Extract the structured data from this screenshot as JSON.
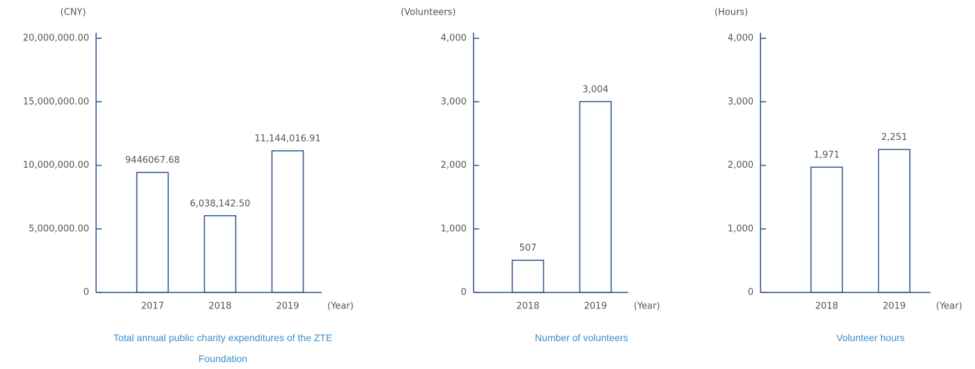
{
  "chart_data": [
    {
      "type": "bar",
      "title": "Total annual public charity expenditures of the ZTE Foundation",
      "y_label": "(CNY)",
      "x_label": "(Year)",
      "categories": [
        "2017",
        "2018",
        "2019"
      ],
      "values": [
        9446067.68,
        6038142.5,
        11144016.91
      ],
      "value_labels": [
        "9446067.68",
        "6,038,142.50",
        "11,144,016.91"
      ],
      "color": "#2d4f8f",
      "ylim": [
        0,
        20000000
      ],
      "yticks": [
        0,
        {
          "value": 5000000,
          "label": "5,000,000.00"
        },
        {
          "value": 10000000,
          "label": "10,000,000.00"
        },
        {
          "value": 15000000,
          "label": "15,000,000.00"
        },
        {
          "value": 20000000,
          "label": "20,000,000.00"
        }
      ]
    },
    {
      "type": "bar",
      "title": "Number of volunteers",
      "y_label": "(Volunteers)",
      "x_label": "(Year)",
      "categories": [
        "2018",
        "2019"
      ],
      "values": [
        507,
        3004
      ],
      "value_labels": [
        "507",
        "3,004"
      ],
      "color": "#2d4f8f",
      "ylim": [
        0,
        4000
      ],
      "yticks": [
        0,
        {
          "value": 1000,
          "label": "1,000"
        },
        {
          "value": 2000,
          "label": "2,000"
        },
        {
          "value": 3000,
          "label": "3,000"
        },
        {
          "value": 4000,
          "label": "4,000"
        }
      ]
    },
    {
      "type": "bar",
      "title": "Volunteer hours",
      "y_label": "(Hours)",
      "x_label": "(Year)",
      "categories": [
        "2018",
        "2019"
      ],
      "values": [
        1971,
        2251
      ],
      "value_labels": [
        "1,971",
        "2,251"
      ],
      "color": "#2d4f8f",
      "ylim": [
        0,
        4000
      ],
      "yticks": [
        0,
        {
          "value": 1000,
          "label": "1,000"
        },
        {
          "value": 2000,
          "label": "2,000"
        },
        {
          "value": 3000,
          "label": "3,000"
        },
        {
          "value": 4000,
          "label": "4,000"
        }
      ]
    }
  ]
}
